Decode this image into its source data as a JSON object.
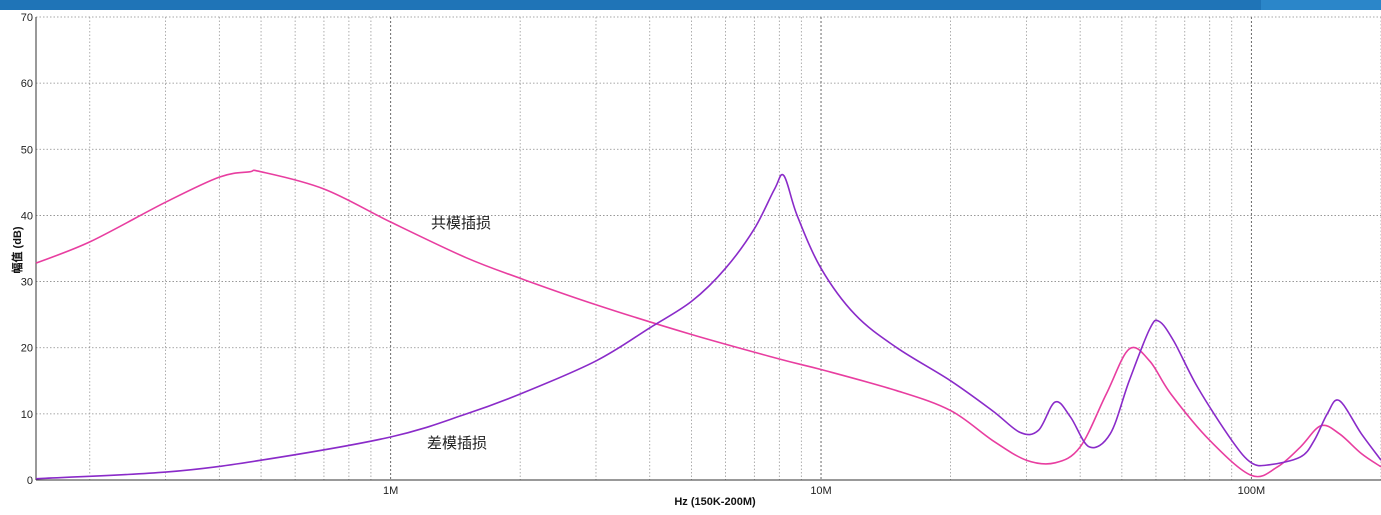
{
  "header": {
    "accent": "#1f74b7"
  },
  "chart_data": {
    "type": "line",
    "xlabel": "Hz  (150K-200M)",
    "ylabel": "幅值 (dB)",
    "xscale": "log",
    "xlim": [
      150000,
      200000000
    ],
    "ylim": [
      0,
      70
    ],
    "grid": true,
    "yticks": [
      "0",
      "10",
      "20",
      "30",
      "40",
      "50",
      "60",
      "70"
    ],
    "xticks": [
      "1M",
      "10M",
      "100M"
    ],
    "annotations": [
      "共模插损",
      "差模插损"
    ],
    "series": [
      {
        "name": "共模插损",
        "color": "#e83ea0",
        "x": [
          150000,
          200000,
          300000,
          400000,
          470000,
          500000,
          700000,
          1000000,
          1500000,
          2000000,
          3000000,
          5000000,
          8000000,
          10000000,
          15000000,
          20000000,
          25000000,
          30000000,
          35000000,
          40000000,
          46000000,
          52000000,
          58000000,
          65000000,
          80000000,
          100000000,
          115000000,
          130000000,
          145000000,
          160000000,
          180000000,
          200000000
        ],
        "y": [
          32.8,
          36,
          42,
          45.8,
          46.6,
          46.6,
          44,
          39,
          33.6,
          30.5,
          26.5,
          22,
          18.3,
          16.7,
          13.5,
          10.5,
          6,
          3,
          2.6,
          5,
          13,
          19.8,
          18,
          13,
          6,
          0.7,
          2,
          5,
          8.2,
          7,
          4,
          2
        ]
      },
      {
        "name": "差模插损",
        "color": "#8a2bc9",
        "x": [
          150000,
          300000,
          500000,
          1000000,
          1500000,
          2000000,
          3000000,
          4000000,
          5000000,
          6000000,
          7000000,
          7800000,
          8200000,
          8800000,
          10000000,
          12000000,
          15000000,
          20000000,
          25000000,
          29000000,
          32000000,
          35000000,
          38000000,
          42000000,
          47000000,
          52000000,
          58000000,
          61000000,
          66000000,
          75000000,
          90000000,
          100000000,
          110000000,
          130000000,
          140000000,
          150000000,
          160000000,
          180000000,
          200000000
        ],
        "y": [
          0.2,
          1.2,
          3,
          6.5,
          10,
          13,
          18,
          23,
          27,
          32,
          38,
          44,
          46,
          40,
          32,
          25,
          20,
          15,
          10.5,
          7.2,
          7.5,
          11.8,
          9.5,
          5,
          7,
          15,
          22.8,
          24,
          21,
          14,
          6,
          2.6,
          2.3,
          3.5,
          6,
          10,
          12,
          7,
          3
        ]
      }
    ]
  }
}
